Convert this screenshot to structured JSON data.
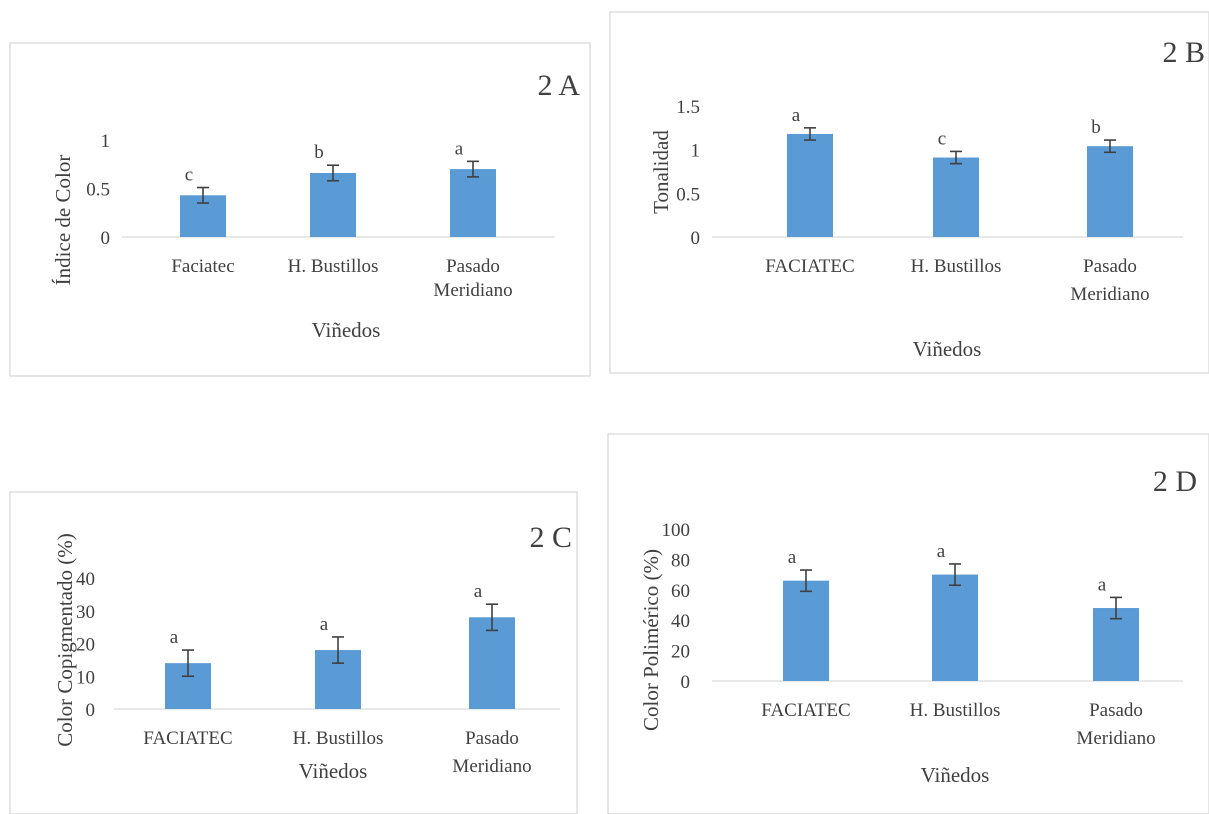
{
  "chart_data": [
    {
      "id": "A",
      "type": "bar",
      "panel_label": "2 A",
      "categories": [
        "Faciatec",
        "H. Bustillos",
        "Pasado Meridiano"
      ],
      "values": [
        0.43,
        0.66,
        0.7
      ],
      "errors": [
        0.08,
        0.08,
        0.08
      ],
      "significance": [
        "c",
        "b",
        "a"
      ],
      "ylabel": "Índice de Color",
      "xlabel": "Viñedos",
      "yticks": [
        "0",
        "0.5",
        "1"
      ],
      "ylim": [
        0,
        1
      ]
    },
    {
      "id": "B",
      "type": "bar",
      "panel_label": "2 B",
      "categories": [
        "FACIATEC",
        "H. Bustillos",
        "Pasado Meridiano"
      ],
      "values": [
        1.18,
        0.91,
        1.04
      ],
      "errors": [
        0.07,
        0.07,
        0.07
      ],
      "significance": [
        "a",
        "c",
        "b"
      ],
      "ylabel": "Tonalidad",
      "xlabel": "Viñedos",
      "yticks": [
        "0",
        "0.5",
        "1",
        "1.5"
      ],
      "ylim": [
        0,
        1.5
      ]
    },
    {
      "id": "C",
      "type": "bar",
      "panel_label": "2 C",
      "categories": [
        "FACIATEC",
        "H. Bustillos",
        "Pasado Meridiano"
      ],
      "values": [
        14,
        18,
        28
      ],
      "errors": [
        4,
        4,
        4
      ],
      "significance": [
        "a",
        "a",
        "a"
      ],
      "ylabel": "Color Copigmentado (%)",
      "xlabel": "Viñedos",
      "yticks": [
        "0",
        "10",
        "20",
        "30",
        "40"
      ],
      "ylim": [
        0,
        40
      ]
    },
    {
      "id": "D",
      "type": "bar",
      "panel_label": "2 D",
      "categories": [
        "FACIATEC",
        "H. Bustillos",
        "Pasado Meridiano"
      ],
      "values": [
        66,
        70,
        48
      ],
      "errors": [
        7,
        7,
        7
      ],
      "significance": [
        "a",
        "a",
        "a"
      ],
      "ylabel": "Color Polimérico (%)",
      "xlabel": "Viñedos",
      "yticks": [
        "0",
        "20",
        "40",
        "60",
        "80",
        "100"
      ],
      "ylim": [
        0,
        100
      ]
    }
  ],
  "colors": {
    "bar": "#5b9bd5",
    "text": "#404040",
    "axis": "#d9d9d9"
  }
}
